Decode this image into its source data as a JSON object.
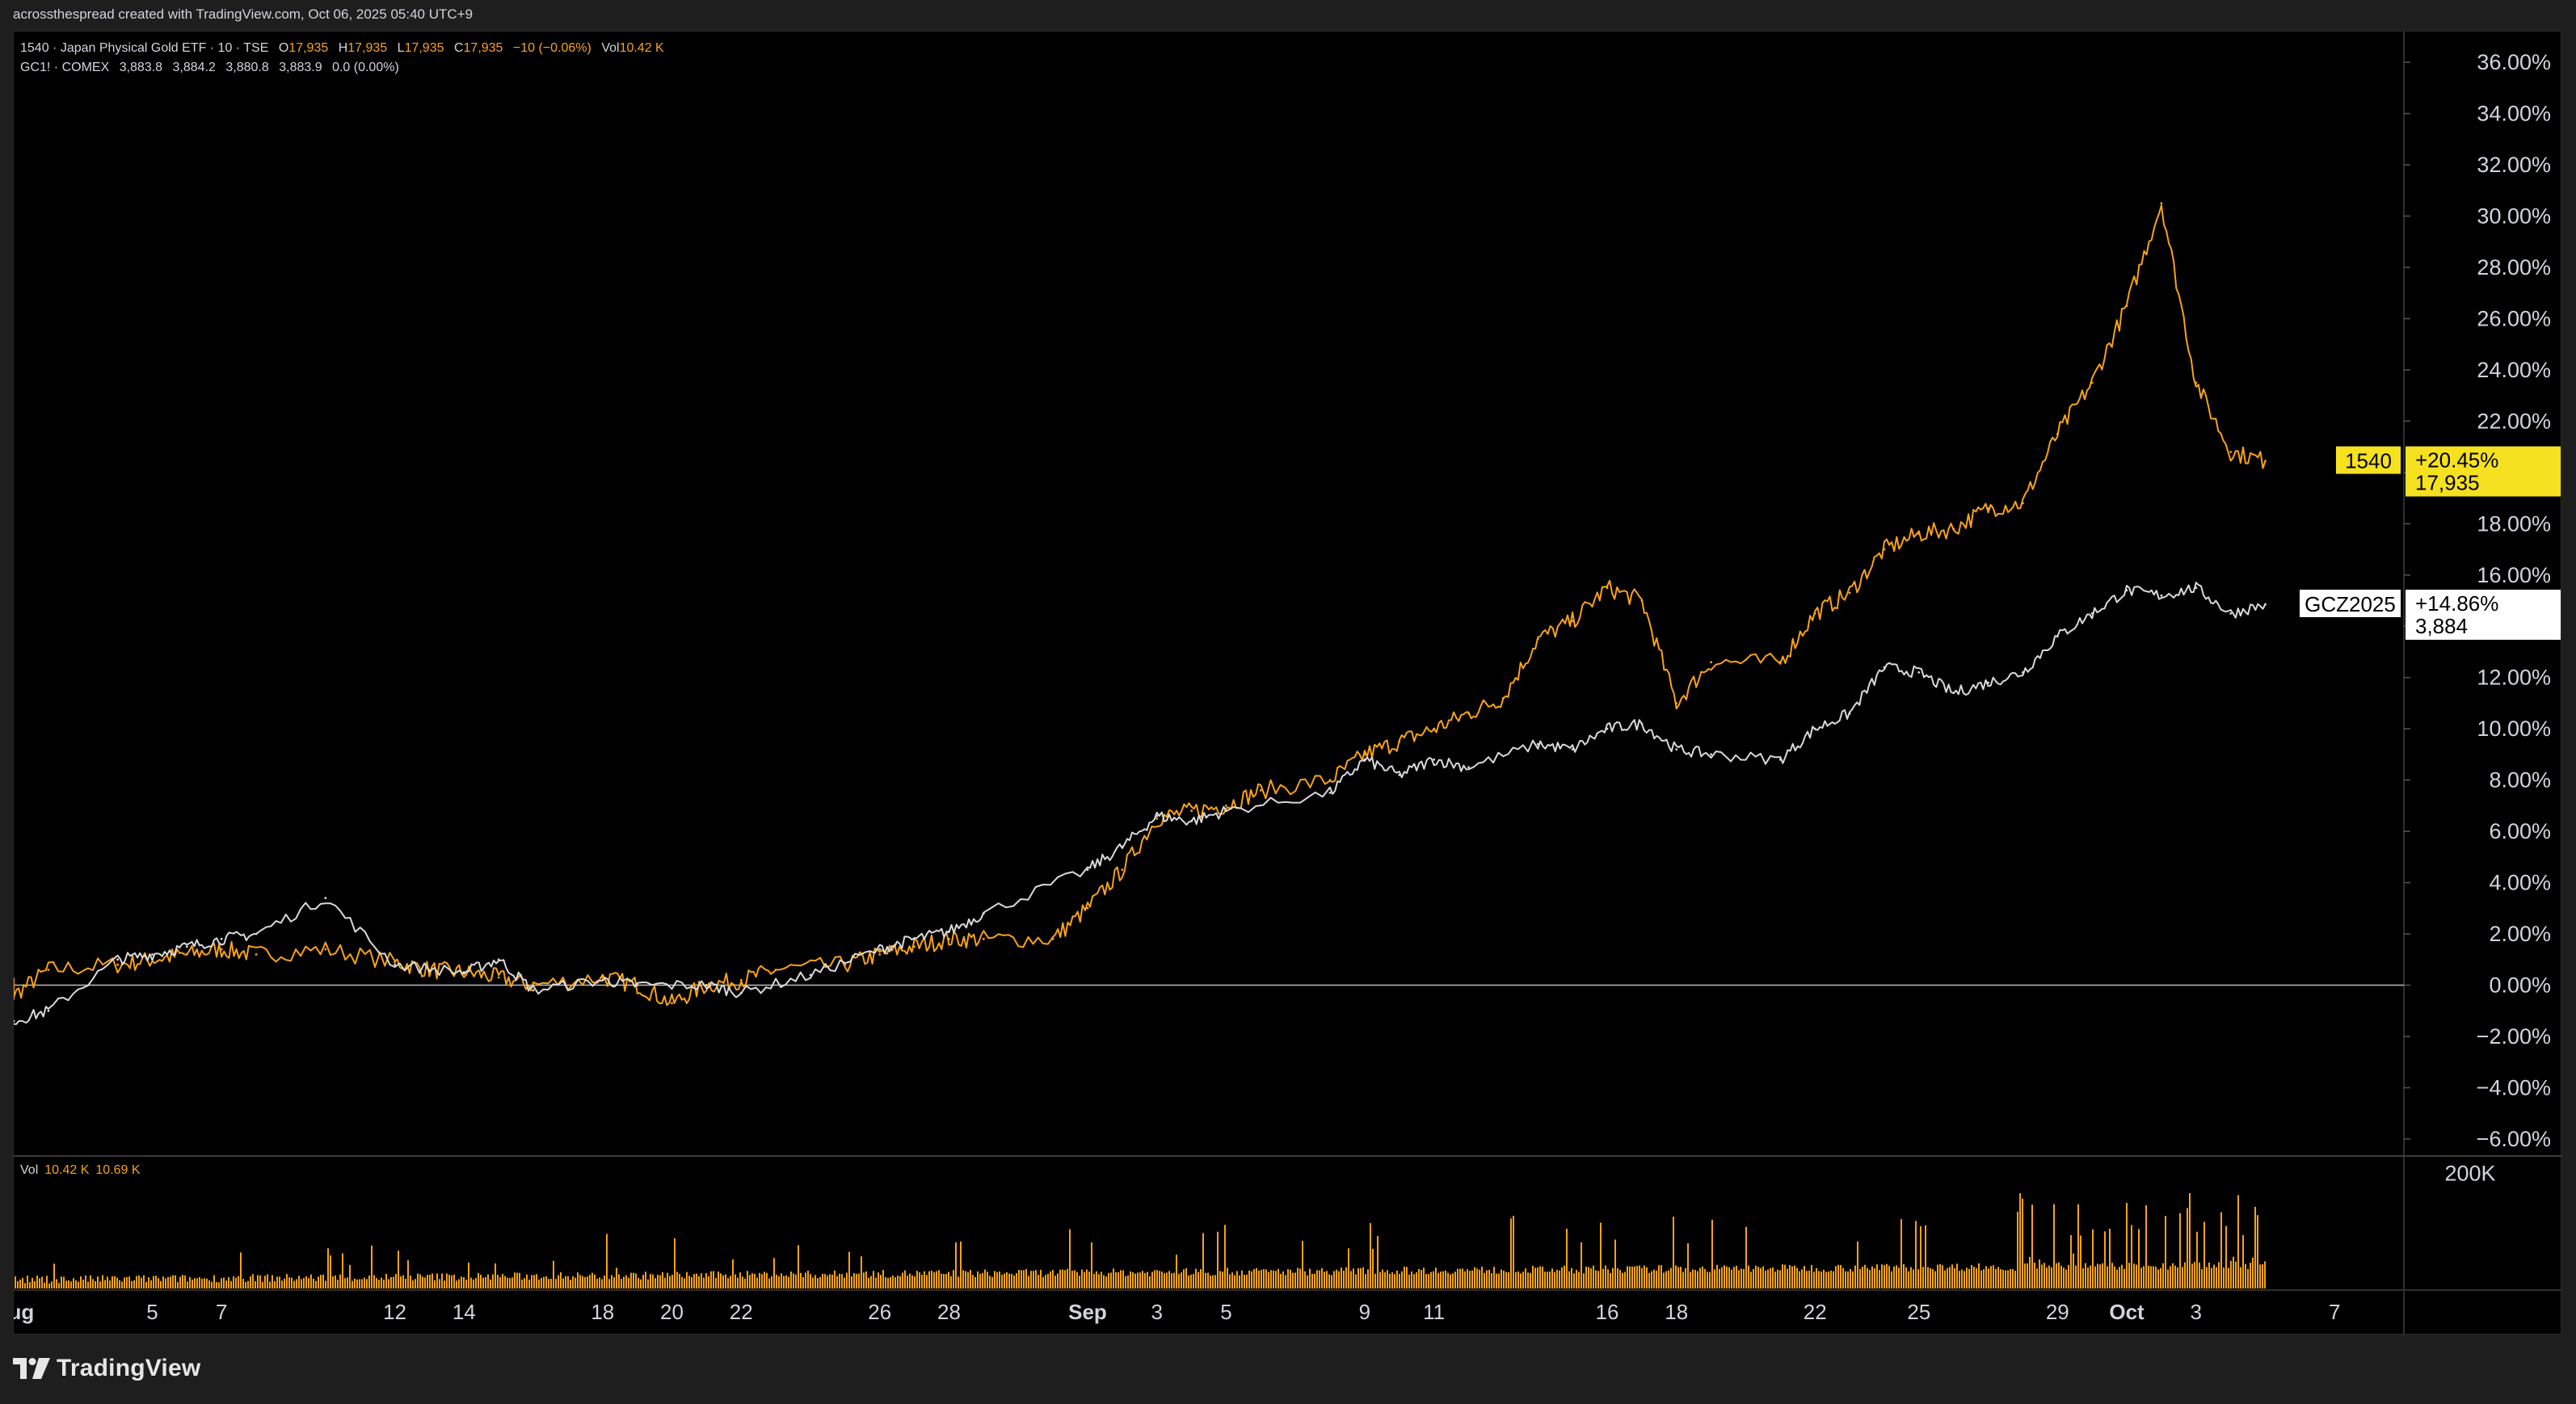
{
  "caption": "acrossthespread created with TradingView.com, Oct 06, 2025 05:40 UTC+9",
  "legend": {
    "line1": {
      "symbol": "1540 · Japan Physical Gold ETF · 10 · TSE",
      "o_label": "O",
      "o_val": "17,935",
      "h_label": "H",
      "h_val": "17,935",
      "l_label": "L",
      "l_val": "17,935",
      "c_label": "C",
      "c_val": "17,935",
      "change": "−10 (−0.06%)",
      "vol_label": "Vol",
      "vol_val": "10.42 K"
    },
    "line2": {
      "symbol": "GC1! · COMEX",
      "o_val": "3,883.8",
      "h_val": "3,884.2",
      "l_val": "3,880.8",
      "c_val": "3,883.9",
      "change": "0.0 (0.00%)"
    }
  },
  "volume_legend": {
    "label": "Vol",
    "v1": "10.42 K",
    "v2": "10.69 K"
  },
  "badges": {
    "gold": {
      "symbol": "1540",
      "pct": "+20.45%",
      "price": "17,935"
    },
    "white": {
      "symbol": "GCZ2025",
      "pct": "+14.86%",
      "price": "3,884"
    }
  },
  "brand": "TradingView",
  "colors": {
    "gold_series": "#f7a21b",
    "white_series": "#d9d9d9",
    "gold_badge": "#f5e11f",
    "background": "#000000"
  },
  "chart_data": {
    "type": "line",
    "y_axis": {
      "unit": "percent",
      "ticks": [
        "36.00%",
        "34.00%",
        "32.00%",
        "30.00%",
        "28.00%",
        "26.00%",
        "24.00%",
        "22.00%",
        "20.00%",
        "18.00%",
        "16.00%",
        "14.00%",
        "12.00%",
        "10.00%",
        "8.00%",
        "6.00%",
        "4.00%",
        "2.00%",
        "0.00%",
        "−2.00%",
        "−4.00%",
        "−6.00%"
      ],
      "tick_values": [
        36,
        34,
        32,
        30,
        28,
        26,
        24,
        22,
        20,
        18,
        16,
        14,
        12,
        10,
        8,
        6,
        4,
        2,
        0,
        -2,
        -4,
        -6
      ],
      "range": [
        -6.6,
        37.2
      ]
    },
    "x_axis": {
      "ticks": [
        "Aug",
        "5",
        "7",
        "12",
        "14",
        "18",
        "20",
        "22",
        "26",
        "28",
        "Sep",
        "3",
        "5",
        "9",
        "11",
        "16",
        "18",
        "22",
        "25",
        "29",
        "Oct",
        "3",
        "7"
      ],
      "tick_dates": [
        "2025-08-01",
        "2025-08-05",
        "2025-08-07",
        "2025-08-12",
        "2025-08-14",
        "2025-08-18",
        "2025-08-20",
        "2025-08-22",
        "2025-08-26",
        "2025-08-28",
        "2025-09-01",
        "2025-09-03",
        "2025-09-05",
        "2025-09-09",
        "2025-09-11",
        "2025-09-16",
        "2025-09-18",
        "2025-09-22",
        "2025-09-25",
        "2025-09-29",
        "2025-10-01",
        "2025-10-03",
        "2025-10-07"
      ],
      "bold": [
        "Aug",
        "Sep",
        "Oct"
      ],
      "range": [
        "2025-08-01",
        "2025-10-09"
      ]
    },
    "volume_axis": {
      "ticks": [
        "200K"
      ],
      "tick_values": [
        200000
      ],
      "range": [
        0,
        230000
      ]
    },
    "series": [
      {
        "name": "1540",
        "color": "#f7a21b",
        "points": [
          [
            "2025-08-01",
            0.0
          ],
          [
            "2025-08-01",
            -0.4
          ],
          [
            "2025-08-02",
            0.6
          ],
          [
            "2025-08-04",
            0.8
          ],
          [
            "2025-08-05",
            1.0
          ],
          [
            "2025-08-06",
            1.2
          ],
          [
            "2025-08-07",
            1.4
          ],
          [
            "2025-08-08",
            1.2
          ],
          [
            "2025-08-10",
            1.4
          ],
          [
            "2025-08-12",
            0.9
          ],
          [
            "2025-08-13",
            0.6
          ],
          [
            "2025-08-14",
            0.5
          ],
          [
            "2025-08-15",
            0.3
          ],
          [
            "2025-08-16",
            0.0
          ],
          [
            "2025-08-18",
            0.3
          ],
          [
            "2025-08-19",
            0.0
          ],
          [
            "2025-08-20",
            -0.7
          ],
          [
            "2025-08-21",
            0.0
          ],
          [
            "2025-08-22",
            0.2
          ],
          [
            "2025-08-23",
            0.6
          ],
          [
            "2025-08-25",
            0.8
          ],
          [
            "2025-08-26",
            1.2
          ],
          [
            "2025-08-27",
            1.5
          ],
          [
            "2025-08-28",
            1.8
          ],
          [
            "2025-08-29",
            1.8
          ],
          [
            "2025-08-31",
            1.8
          ],
          [
            "2025-09-01",
            3.0
          ],
          [
            "2025-09-02",
            4.5
          ],
          [
            "2025-09-03",
            6.5
          ],
          [
            "2025-09-04",
            6.8
          ],
          [
            "2025-09-05",
            7.0
          ],
          [
            "2025-09-06",
            7.6
          ],
          [
            "2025-09-08",
            8.0
          ],
          [
            "2025-09-09",
            9.0
          ],
          [
            "2025-09-10",
            9.5
          ],
          [
            "2025-09-11",
            10.0
          ],
          [
            "2025-09-12",
            10.6
          ],
          [
            "2025-09-13",
            11.2
          ],
          [
            "2025-09-14",
            13.5
          ],
          [
            "2025-09-15",
            14.2
          ],
          [
            "2025-09-16",
            15.5
          ],
          [
            "2025-09-17",
            15.0
          ],
          [
            "2025-09-18",
            11.0
          ],
          [
            "2025-09-19",
            12.6
          ],
          [
            "2025-09-21",
            12.6
          ],
          [
            "2025-09-22",
            14.5
          ],
          [
            "2025-09-23",
            15.3
          ],
          [
            "2025-09-24",
            17.0
          ],
          [
            "2025-09-25",
            17.6
          ],
          [
            "2025-09-26",
            17.8
          ],
          [
            "2025-09-27",
            18.6
          ],
          [
            "2025-09-28",
            18.8
          ],
          [
            "2025-09-29",
            21.5
          ],
          [
            "2025-09-30",
            23.5
          ],
          [
            "2025-10-01",
            26.5
          ],
          [
            "2025-10-02",
            30.5
          ],
          [
            "2025-10-03",
            23.5
          ],
          [
            "2025-10-04",
            20.8
          ],
          [
            "2025-10-05",
            20.45
          ]
        ]
      },
      {
        "name": "GCZ2025",
        "color": "#d9d9d9",
        "points": [
          [
            "2025-08-01",
            -1.4
          ],
          [
            "2025-08-02",
            -1.0
          ],
          [
            "2025-08-04",
            1.0
          ],
          [
            "2025-08-05",
            1.2
          ],
          [
            "2025-08-06",
            1.5
          ],
          [
            "2025-08-07",
            1.8
          ],
          [
            "2025-08-08",
            2.0
          ],
          [
            "2025-08-10",
            3.4
          ],
          [
            "2025-08-12",
            0.8
          ],
          [
            "2025-08-14",
            0.5
          ],
          [
            "2025-08-15",
            1.0
          ],
          [
            "2025-08-16",
            -0.2
          ],
          [
            "2025-08-18",
            0.2
          ],
          [
            "2025-08-19",
            0.0
          ],
          [
            "2025-08-21",
            0.0
          ],
          [
            "2025-08-22",
            -0.3
          ],
          [
            "2025-08-24",
            0.4
          ],
          [
            "2025-08-26",
            1.4
          ],
          [
            "2025-08-27",
            1.8
          ],
          [
            "2025-08-28",
            2.1
          ],
          [
            "2025-08-29",
            2.8
          ],
          [
            "2025-09-01",
            4.5
          ],
          [
            "2025-09-02",
            5.4
          ],
          [
            "2025-09-03",
            6.6
          ],
          [
            "2025-09-04",
            6.4
          ],
          [
            "2025-09-05",
            6.8
          ],
          [
            "2025-09-08",
            7.5
          ],
          [
            "2025-09-09",
            8.8
          ],
          [
            "2025-09-10",
            8.2
          ],
          [
            "2025-09-11",
            8.8
          ],
          [
            "2025-09-12",
            8.5
          ],
          [
            "2025-09-14",
            9.4
          ],
          [
            "2025-09-15",
            9.2
          ],
          [
            "2025-09-16",
            10.0
          ],
          [
            "2025-09-17",
            10.2
          ],
          [
            "2025-09-18",
            9.2
          ],
          [
            "2025-09-19",
            9.0
          ],
          [
            "2025-09-21",
            8.8
          ],
          [
            "2025-09-22",
            10.0
          ],
          [
            "2025-09-23",
            10.6
          ],
          [
            "2025-09-24",
            12.4
          ],
          [
            "2025-09-25",
            12.2
          ],
          [
            "2025-09-26",
            11.4
          ],
          [
            "2025-09-27",
            11.8
          ],
          [
            "2025-09-28",
            12.2
          ],
          [
            "2025-09-29",
            13.6
          ],
          [
            "2025-09-30",
            14.5
          ],
          [
            "2025-10-01",
            15.4
          ],
          [
            "2025-10-02",
            15.2
          ],
          [
            "2025-10-03",
            15.5
          ],
          [
            "2025-10-04",
            14.5
          ],
          [
            "2025-10-05",
            14.86
          ]
        ]
      }
    ]
  }
}
